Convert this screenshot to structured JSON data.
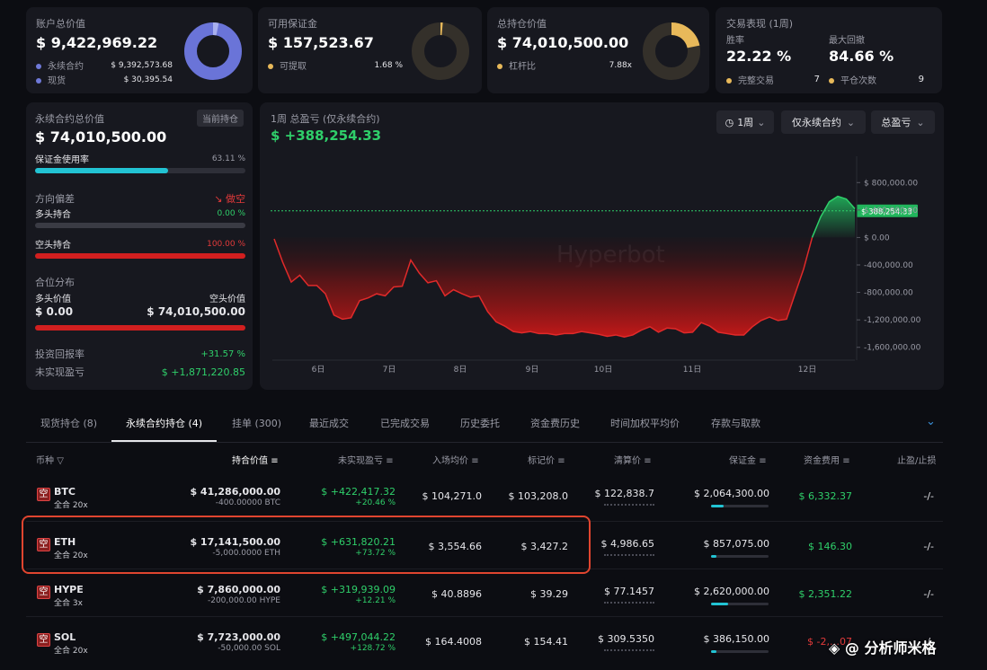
{
  "summary": {
    "account": {
      "title": "账户总价值",
      "value": "$ 9,422,969.22",
      "rows": [
        {
          "label": "永续合约",
          "value": "$ 9,392,573.68",
          "color": "#6f79d8"
        },
        {
          "label": "现货",
          "value": "$ 30,395.54",
          "color": "#6f79d8"
        }
      ]
    },
    "margin": {
      "title": "可用保证金",
      "value": "$ 157,523.67",
      "row_label": "可提取",
      "row_value": "1.68 %"
    },
    "position": {
      "title": "总持仓价值",
      "value": "$ 74,010,500.00",
      "row_label": "杠杆比",
      "row_value": "7.88x"
    },
    "performance": {
      "title": "交易表现 (1周)",
      "winrate_label": "胜率",
      "winrate": "22.22 %",
      "drawdown_label": "最大回撤",
      "drawdown": "84.66 %",
      "done_label": "完整交易",
      "done_value": "7",
      "close_label": "平仓次数",
      "close_value": "9"
    }
  },
  "perp": {
    "title": "永续合约总价值",
    "badge": "当前持仓",
    "value": "$ 74,010,500.00",
    "margin_usage_label": "保证金使用率",
    "margin_usage": "63.11 %",
    "margin_usage_fraction": 0.6311,
    "bias_label": "方向偏差",
    "bias_value": "做空",
    "long_label": "多头持合",
    "long_value": "0.00 %",
    "short_label": "空头持合",
    "short_value": "100.00 %",
    "dist_label": "合位分布",
    "long_val_label": "多头价值",
    "short_val_label": "空头价值",
    "long_val": "$ 0.00",
    "short_val": "$ 74,010,500.00",
    "roi_label": "投资回报率",
    "roi": "+31.57 %",
    "upnl_label": "未实现盈亏",
    "upnl": "$ +1,871,220.85"
  },
  "chart": {
    "title": "1周 总盈亏 (仅永续合约)",
    "value": "$ +388,254.33",
    "controls": {
      "period": "1周",
      "filter": "仅永续合约",
      "metric": "总盈亏"
    },
    "watermark": "Hyperbot",
    "current_label": "$ 388,254.33"
  },
  "chart_data": {
    "type": "area",
    "title": "1周 总盈亏 (仅永续合约)",
    "x_ticks": [
      "6日",
      "7日",
      "8日",
      "9日",
      "10日",
      "11日",
      "12日"
    ],
    "y_ticks": [
      "$ 800,000.00",
      "$ 400,000.00",
      "$ 0.00",
      "-400,000.00",
      "-800,000.00",
      "-1,200,000.00",
      "-1,600,000.00"
    ],
    "ylim": [
      -1800000,
      1000000
    ],
    "values": [
      -20000,
      -360000,
      -650000,
      -550000,
      -700000,
      -700000,
      -820000,
      -1130000,
      -1190000,
      -1170000,
      -920000,
      -880000,
      -820000,
      -850000,
      -720000,
      -710000,
      -330000,
      -520000,
      -660000,
      -630000,
      -850000,
      -760000,
      -820000,
      -870000,
      -850000,
      -1080000,
      -1230000,
      -1290000,
      -1370000,
      -1390000,
      -1370000,
      -1400000,
      -1400000,
      -1420000,
      -1400000,
      -1400000,
      -1370000,
      -1390000,
      -1410000,
      -1440000,
      -1420000,
      -1450000,
      -1420000,
      -1350000,
      -1300000,
      -1380000,
      -1320000,
      -1330000,
      -1390000,
      -1380000,
      -1240000,
      -1290000,
      -1380000,
      -1400000,
      -1420000,
      -1420000,
      -1300000,
      -1210000,
      -1160000,
      -1210000,
      -1190000,
      -820000,
      -460000,
      0,
      300000,
      520000,
      600000,
      560000,
      420000
    ],
    "current": 388254.33,
    "grid": false
  },
  "tabs": [
    {
      "label": "现货持仓 (8)"
    },
    {
      "label": "永续合约持仓 (4)"
    },
    {
      "label": "挂单 (300)"
    },
    {
      "label": "最近成交"
    },
    {
      "label": "已完成交易"
    },
    {
      "label": "历史委托"
    },
    {
      "label": "资金费历史"
    },
    {
      "label": "时间加权平均价"
    },
    {
      "label": "存款与取款"
    }
  ],
  "table": {
    "headers": [
      "币种",
      "持合价值",
      "未实现盈亏",
      "入场均价",
      "标记价",
      "清算价",
      "保证金",
      "资金费用",
      "止盈/止损"
    ],
    "rows": [
      {
        "side": "空",
        "coin": "BTC",
        "mode": "全合 20x",
        "value": "$ 41,286,000.00",
        "size": "-400.00000 BTC",
        "pnl": "$ +422,417.32",
        "pnl_pct": "+20.46 %",
        "entry": "$ 104,271.0",
        "mark": "$ 103,208.0",
        "liq": "$ 122,838.7",
        "margin": "$ 2,064,300.00",
        "margin_fraction": 0.22,
        "funding": "$ 6,332.37",
        "tpsl": "-/-"
      },
      {
        "side": "空",
        "coin": "ETH",
        "mode": "全合 20x",
        "value": "$ 17,141,500.00",
        "size": "-5,000.0000 ETH",
        "pnl": "$ +631,820.21",
        "pnl_pct": "+73.72 %",
        "entry": "$ 3,554.66",
        "mark": "$ 3,427.2",
        "liq": "$ 4,986.65",
        "margin": "$ 857,075.00",
        "margin_fraction": 0.1,
        "funding": "$ 146.30",
        "tpsl": "-/-"
      },
      {
        "side": "空",
        "coin": "HYPE",
        "mode": "全合 3x",
        "value": "$ 7,860,000.00",
        "size": "-200,000.00 HYPE",
        "pnl": "$ +319,939.09",
        "pnl_pct": "+12.21 %",
        "entry": "$ 40.8896",
        "mark": "$ 39.29",
        "liq": "$ 77.1457",
        "margin": "$ 2,620,000.00",
        "margin_fraction": 0.3,
        "funding": "$ 2,351.22",
        "tpsl": "-/-"
      },
      {
        "side": "空",
        "coin": "SOL",
        "mode": "全合 20x",
        "value": "$ 7,723,000.00",
        "size": "-50,000.00 SOL",
        "pnl": "$ +497,044.22",
        "pnl_pct": "+128.72 %",
        "entry": "$ 164.4008",
        "mark": "$ 154.41",
        "liq": "$ 309.5350",
        "margin": "$ 386,150.00",
        "margin_fraction": 0.1,
        "funding": "$ -2,…07",
        "tpsl": "-/-"
      }
    ]
  },
  "watermark_footer": "@ 分析师米格"
}
